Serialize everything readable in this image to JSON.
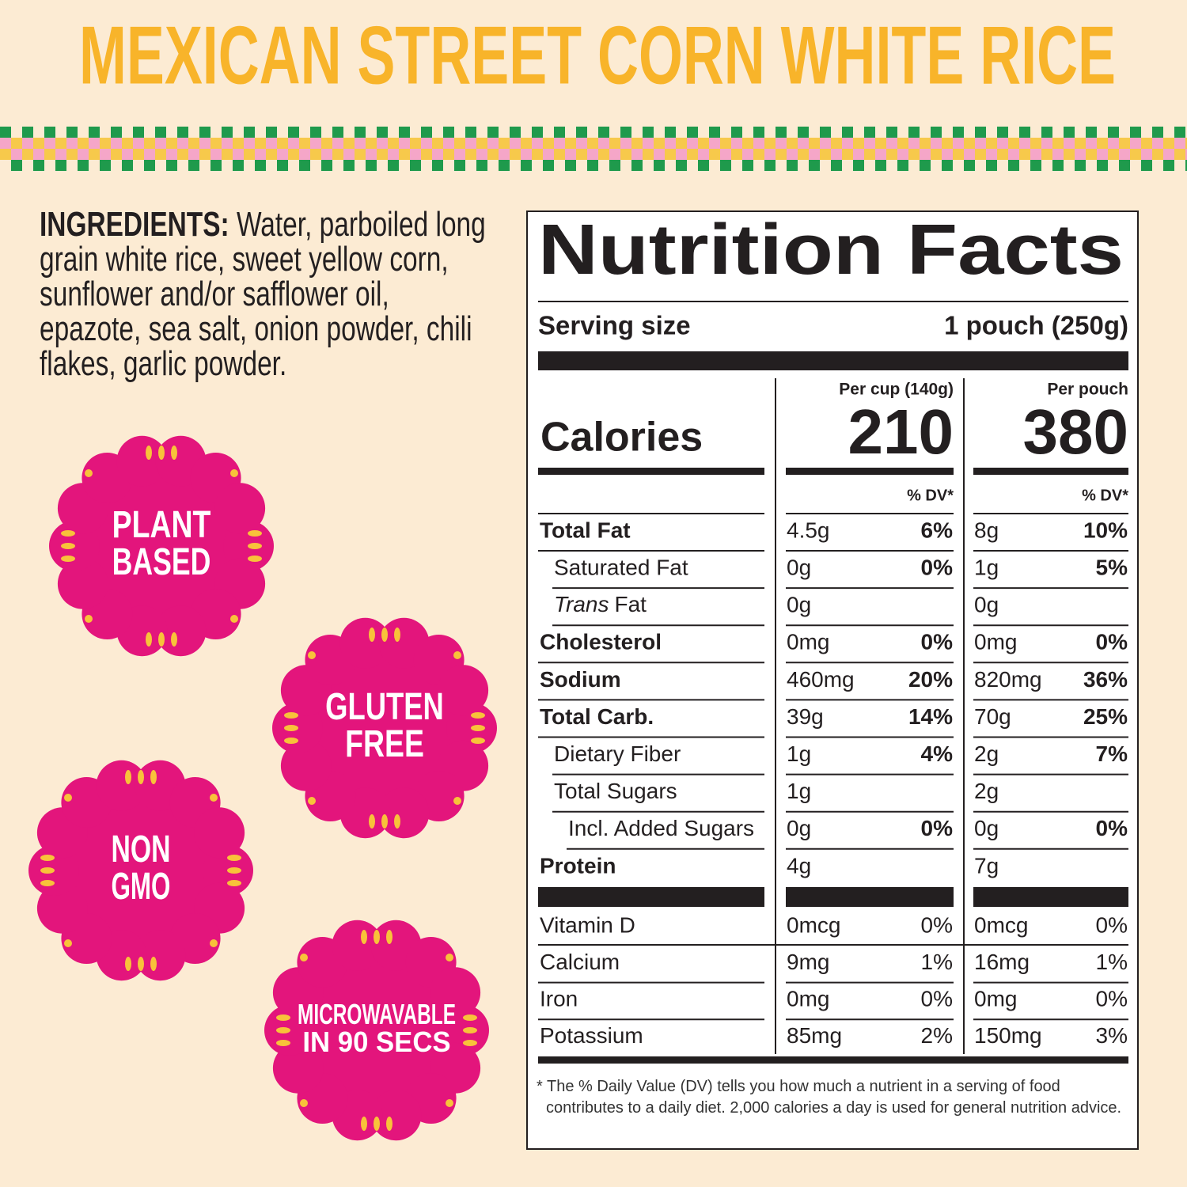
{
  "title": "MEXICAN STREET CORN WHITE RICE",
  "ingredients": {
    "label": "INGREDIENTS:",
    "text": "Water, parboiled long grain white rice, sweet yellow corn, sunflower and/or safflower oil, epazote, sea salt, onion powder, chili flakes, garlic powder."
  },
  "badges": [
    [
      "PLANT",
      "BASED"
    ],
    [
      "GLUTEN",
      "FREE"
    ],
    [
      "NON",
      "GMO"
    ],
    [
      "MICROWAVABLE",
      "IN 90 SECS"
    ]
  ],
  "nutrition": {
    "title": "Nutrition Facts",
    "serving_size_label": "Serving size",
    "serving_size": "1 pouch (250g)",
    "columns": [
      "Per cup (140g)",
      "Per pouch"
    ],
    "calories_label": "Calories",
    "calories": [
      210,
      380
    ],
    "dv_header": "% DV*",
    "rows": [
      {
        "name": "Total Fat",
        "cup": {
          "amount": "4.5g",
          "dv": "6%"
        },
        "pouch": {
          "amount": "8g",
          "dv": "10%"
        }
      },
      {
        "name": "Saturated Fat",
        "cup": {
          "amount": "0g",
          "dv": "0%"
        },
        "pouch": {
          "amount": "1g",
          "dv": "5%"
        }
      },
      {
        "name_prefix": "Trans",
        "name": "Fat",
        "cup": {
          "amount": "0g"
        },
        "pouch": {
          "amount": "0g"
        }
      },
      {
        "name": "Cholesterol",
        "cup": {
          "amount": "0mg",
          "dv": "0%"
        },
        "pouch": {
          "amount": "0mg",
          "dv": "0%"
        }
      },
      {
        "name": "Sodium",
        "cup": {
          "amount": "460mg",
          "dv": "20%"
        },
        "pouch": {
          "amount": "820mg",
          "dv": "36%"
        }
      },
      {
        "name": "Total Carb.",
        "cup": {
          "amount": "39g",
          "dv": "14%"
        },
        "pouch": {
          "amount": "70g",
          "dv": "25%"
        }
      },
      {
        "name": "Dietary Fiber",
        "cup": {
          "amount": "1g",
          "dv": "4%"
        },
        "pouch": {
          "amount": "2g",
          "dv": "7%"
        }
      },
      {
        "name": "Total Sugars",
        "cup": {
          "amount": "1g"
        },
        "pouch": {
          "amount": "2g"
        }
      },
      {
        "name": "Incl. Added Sugars",
        "cup": {
          "amount": "0g",
          "dv": "0%"
        },
        "pouch": {
          "amount": "0g",
          "dv": "0%"
        }
      },
      {
        "name": "Protein",
        "cup": {
          "amount": "4g"
        },
        "pouch": {
          "amount": "7g"
        }
      }
    ],
    "vitamins": [
      {
        "name": "Vitamin D",
        "cup": {
          "amount": "0mcg",
          "dv": "0%"
        },
        "pouch": {
          "amount": "0mcg",
          "dv": "0%"
        }
      },
      {
        "name": "Calcium",
        "cup": {
          "amount": "9mg",
          "dv": "1%"
        },
        "pouch": {
          "amount": "16mg",
          "dv": "1%"
        }
      },
      {
        "name": "Iron",
        "cup": {
          "amount": "0mg",
          "dv": "0%"
        },
        "pouch": {
          "amount": "0mg",
          "dv": "0%"
        }
      },
      {
        "name": "Potassium",
        "cup": {
          "amount": "85mg",
          "dv": "2%"
        },
        "pouch": {
          "amount": "150mg",
          "dv": "3%"
        }
      }
    ],
    "footnote": "* The % Daily Value (DV) tells you how much a nutrient in a serving of food contributes to a daily diet. 2,000 calories a day is used for general nutrition advice."
  }
}
